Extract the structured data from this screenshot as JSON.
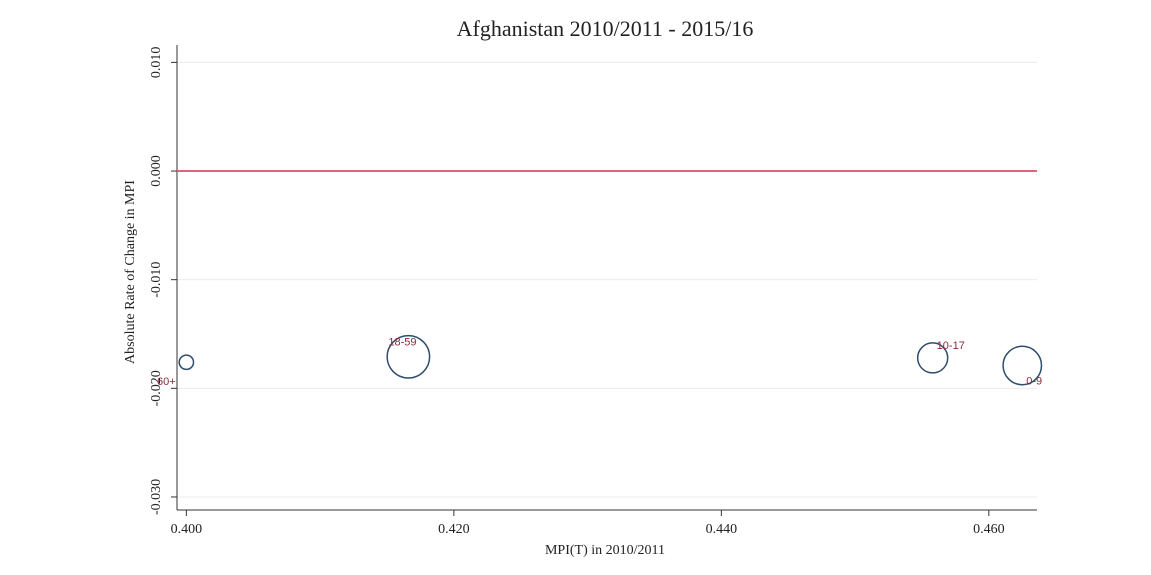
{
  "chart_data": {
    "type": "bubble",
    "title": "Afghanistan 2010/2011 - 2015/16",
    "xlabel": "MPI(T) in 2010/2011",
    "ylabel": "Absolute Rate of Change in MPI",
    "labels": [
      "60+",
      "18-59",
      "10-17",
      "0-9"
    ],
    "x": [
      0.4,
      0.4166,
      0.4558,
      0.4625
    ],
    "values": [
      -0.0176,
      -0.0171,
      -0.0172,
      -0.0179
    ],
    "sizes": [
      5,
      44,
      22,
      36
    ],
    "color": "#2e4d6e",
    "label_color": "#8b2a3c",
    "xlim": [
      0.3993,
      0.4636
    ],
    "ylim": [
      -0.0312,
      0.0116
    ],
    "xticks": [
      {
        "value": 0.4,
        "label": "0.400"
      },
      {
        "value": 0.42,
        "label": "0.420"
      },
      {
        "value": 0.44,
        "label": "0.440"
      },
      {
        "value": 0.46,
        "label": "0.460"
      }
    ],
    "yticks": [
      {
        "value": -0.03,
        "label": "-0.030"
      },
      {
        "value": -0.02,
        "label": "-0.020"
      },
      {
        "value": -0.01,
        "label": "-0.010"
      },
      {
        "value": 0,
        "label": "0.000"
      },
      {
        "value": 0.01,
        "label": "0.010"
      }
    ],
    "hline": 0,
    "hline_color": "#d9667f",
    "grid": true
  }
}
